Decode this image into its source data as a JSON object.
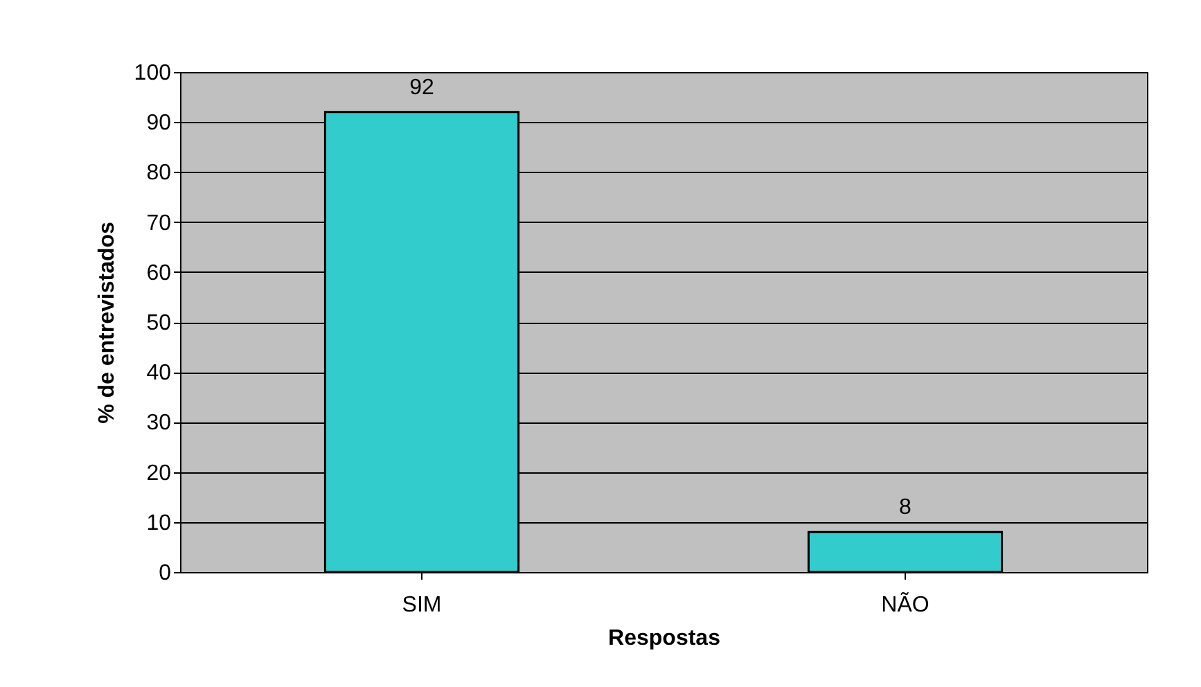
{
  "chart_data": {
    "type": "bar",
    "categories": [
      "SIM",
      "NÃO"
    ],
    "values": [
      92,
      8
    ],
    "color": "#33cccc",
    "xlabel": "Respostas",
    "ylabel": "% de entrevistados",
    "ylim": [
      0,
      100
    ],
    "yticks": [
      0,
      10,
      20,
      30,
      40,
      50,
      60,
      70,
      80,
      90,
      100
    ],
    "grid": "y",
    "data_labels": true
  }
}
